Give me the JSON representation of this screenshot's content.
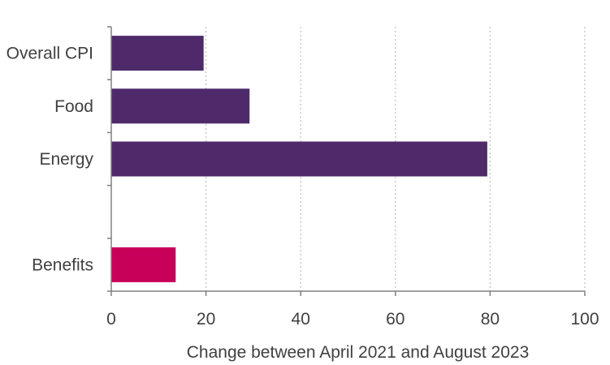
{
  "chart_data": {
    "type": "bar",
    "orientation": "horizontal",
    "categories": [
      "Overall CPI",
      "Food",
      "Energy",
      "",
      "Benefits"
    ],
    "values": [
      19.5,
      29.2,
      79.4,
      null,
      13.6
    ],
    "bar_colors": [
      "#4f2a6b",
      "#4f2a6b",
      "#4f2a6b",
      null,
      "#c8005a"
    ],
    "title": "",
    "xlabel": "Change between April 2021 and August 2023",
    "ylabel": "",
    "xlim": [
      0,
      100
    ],
    "xticks": [
      0,
      20,
      40,
      60,
      80,
      100
    ],
    "xtick_labels": [
      "0",
      "20",
      "40",
      "60",
      "80",
      "100"
    ],
    "grid": "vertical-dotted",
    "legend": "none"
  }
}
